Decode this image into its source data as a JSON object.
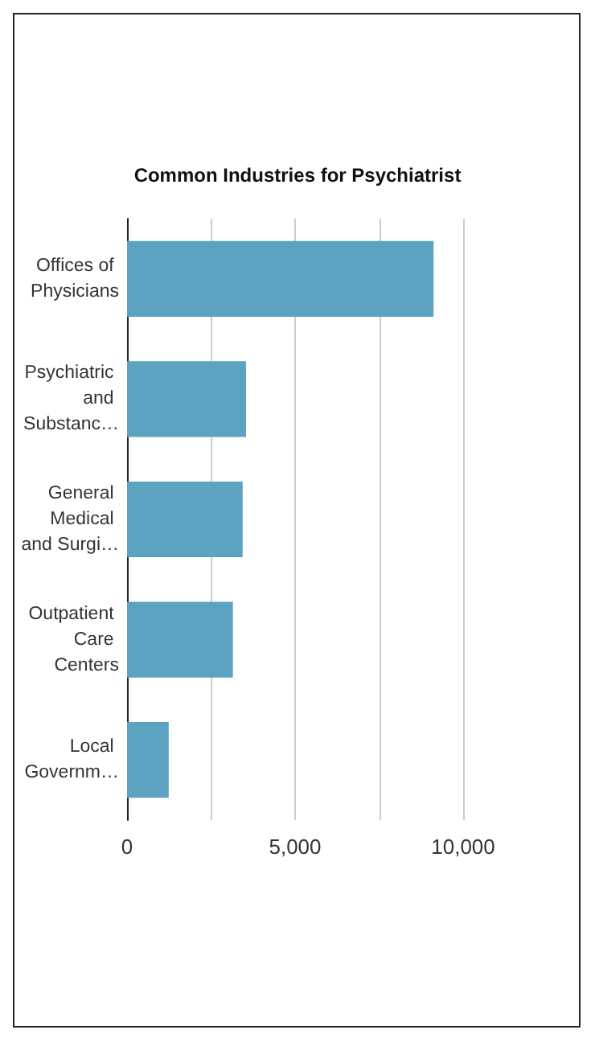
{
  "chart_data": {
    "type": "bar",
    "orientation": "horizontal",
    "title": "Common Industries for Psychiatrist",
    "categories": [
      "Offices of Physicians",
      "Psychiatric and Substanc…",
      "General Medical and Surgi…",
      "Outpatient Care Centers",
      "Local Governm…"
    ],
    "values": [
      9120,
      3540,
      3440,
      3150,
      1240
    ],
    "color": "#5ba3c1",
    "xlim": [
      0,
      10000
    ],
    "xticks": [
      0,
      {
        "value": 2500,
        "label": null
      },
      {
        "value": 5000,
        "label": "5,000"
      },
      {
        "value": 7500,
        "label": null
      },
      {
        "value": 10000,
        "label": "10,000"
      }
    ],
    "grid": "x"
  }
}
